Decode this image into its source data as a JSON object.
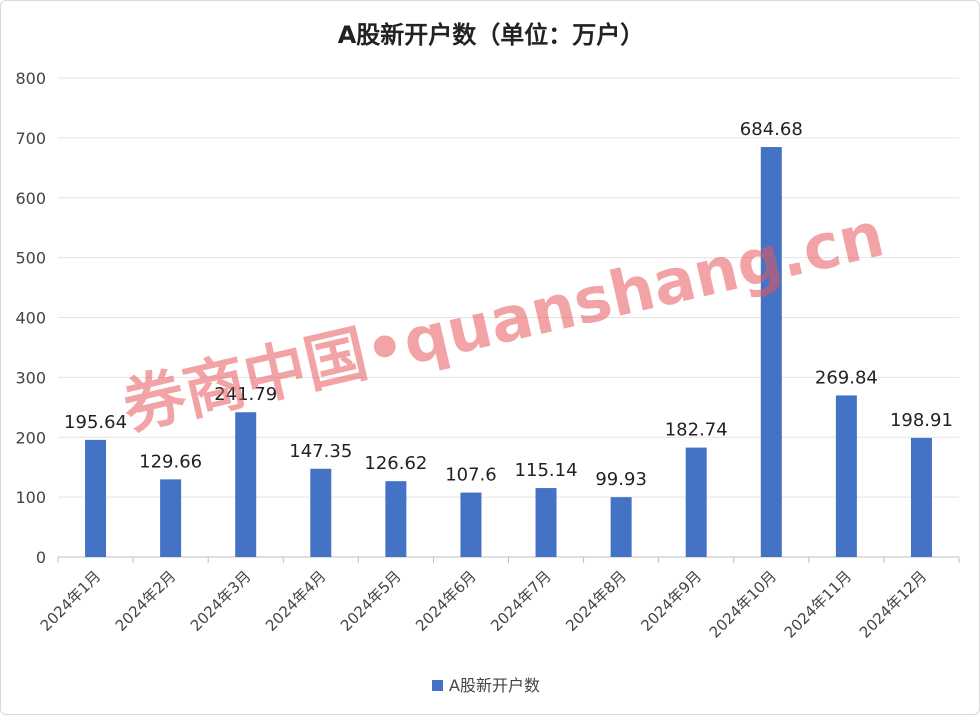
{
  "chart_data": {
    "type": "bar",
    "title": "A股新开户数（单位：万户）",
    "categories": [
      "2024年1月",
      "2024年2月",
      "2024年3月",
      "2024年4月",
      "2024年5月",
      "2024年6月",
      "2024年7月",
      "2024年8月",
      "2024年9月",
      "2024年10月",
      "2024年11月",
      "2024年12月"
    ],
    "series": [
      {
        "name": "A股新开户数",
        "values": [
          195.64,
          129.66,
          241.79,
          147.35,
          126.62,
          107.6,
          115.14,
          99.93,
          182.74,
          684.68,
          269.84,
          198.91
        ]
      }
    ],
    "data_labels": [
      "195.64",
      "129.66",
      "241.79",
      "147.35",
      "126.62",
      "107.6",
      "115.14",
      "99.93",
      "182.74",
      "684.68",
      "269.84",
      "198.91"
    ],
    "y_ticks": [
      0,
      100,
      200,
      300,
      400,
      500,
      600,
      700,
      800
    ],
    "ylim": [
      0,
      800
    ],
    "grid": true,
    "legend_position": "bottom",
    "bar_color": "#4472c4",
    "watermark": "券商中国•quanshang.cn"
  }
}
